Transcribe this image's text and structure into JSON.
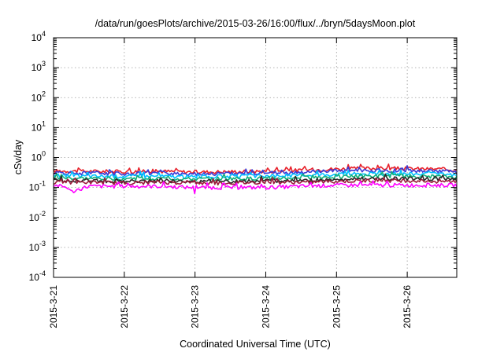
{
  "chart_data": {
    "type": "line",
    "title": "/data/run/goesPlots/archive/2015-03-26/16:00/flux/../bryn/5daysMoon.plot",
    "xlabel": "Coordinated Universal Time (UTC)",
    "ylabel": "cSv/day",
    "yscale": "log",
    "ylim": [
      0.0001,
      10000
    ],
    "xlim": [
      0,
      5.7
    ],
    "grid": true,
    "x_tick_values": [
      0,
      1,
      2,
      3,
      4,
      5
    ],
    "x_tick_labels": [
      "2015-3-21",
      "2015-3-22",
      "2015-3-23",
      "2015-3-24",
      "2015-3-25",
      "2015-3-26"
    ],
    "y_ticks": [
      {
        "value": 0.0001,
        "base": "10",
        "exp": "-4"
      },
      {
        "value": 0.001,
        "base": "10",
        "exp": "-3"
      },
      {
        "value": 0.01,
        "base": "10",
        "exp": "-2"
      },
      {
        "value": 0.1,
        "base": "10",
        "exp": "-1"
      },
      {
        "value": 1,
        "base": "10",
        "exp": "0"
      },
      {
        "value": 10,
        "base": "10",
        "exp": "1"
      },
      {
        "value": 100,
        "base": "10",
        "exp": "2"
      },
      {
        "value": 1000,
        "base": "10",
        "exp": "3"
      },
      {
        "value": 10000,
        "base": "10",
        "exp": "4"
      }
    ],
    "series": [
      {
        "color": "#e8202a",
        "x": [
          0,
          0.5,
          1.0,
          1.5,
          2.0,
          2.5,
          3.0,
          3.5,
          4.0,
          4.5,
          5.0,
          5.5,
          5.7
        ],
        "values": [
          0.36,
          0.35,
          0.34,
          0.35,
          0.33,
          0.34,
          0.35,
          0.38,
          0.42,
          0.44,
          0.43,
          0.41,
          0.38
        ]
      },
      {
        "color": "#3b3bd6",
        "x": [
          0,
          0.5,
          1.0,
          1.5,
          2.0,
          2.5,
          3.0,
          3.5,
          4.0,
          4.5,
          5.0,
          5.5,
          5.7
        ],
        "values": [
          0.31,
          0.3,
          0.29,
          0.3,
          0.29,
          0.29,
          0.3,
          0.32,
          0.36,
          0.37,
          0.37,
          0.35,
          0.32
        ]
      },
      {
        "color": "#00c0ff",
        "x": [
          0,
          0.5,
          1.0,
          1.5,
          2.0,
          2.5,
          3.0,
          3.5,
          4.0,
          4.5,
          5.0,
          5.5,
          5.7
        ],
        "values": [
          0.25,
          0.24,
          0.24,
          0.24,
          0.23,
          0.24,
          0.24,
          0.26,
          0.28,
          0.29,
          0.29,
          0.28,
          0.26
        ]
      },
      {
        "color": "#10b07a",
        "x": [
          0,
          0.5,
          1.0,
          1.5,
          2.0,
          2.5,
          3.0,
          3.5,
          4.0,
          4.5,
          5.0,
          5.5,
          5.7
        ],
        "values": [
          0.21,
          0.2,
          0.2,
          0.2,
          0.19,
          0.2,
          0.2,
          0.21,
          0.23,
          0.24,
          0.24,
          0.23,
          0.22
        ]
      },
      {
        "color": "#2a2a2a",
        "x": [
          0,
          0.5,
          1.0,
          1.5,
          2.0,
          2.5,
          3.0,
          3.5,
          4.0,
          4.5,
          5.0,
          5.5,
          5.7
        ],
        "values": [
          0.17,
          0.17,
          0.16,
          0.17,
          0.16,
          0.16,
          0.17,
          0.17,
          0.19,
          0.2,
          0.2,
          0.19,
          0.18
        ]
      },
      {
        "color": "#9b1c3c",
        "x": [
          0,
          0.5,
          1.0,
          1.5,
          2.0,
          2.5,
          3.0,
          3.5,
          4.0,
          4.5,
          5.0,
          5.5,
          5.7
        ],
        "values": [
          0.15,
          0.15,
          0.14,
          0.15,
          0.14,
          0.14,
          0.15,
          0.15,
          0.16,
          0.17,
          0.17,
          0.16,
          0.16
        ]
      },
      {
        "color": "#ff00ff",
        "x": [
          0,
          0.2,
          0.25,
          0.5,
          1.0,
          1.5,
          1.98,
          2.0,
          2.02,
          2.5,
          3.0,
          3.5,
          4.0,
          4.5,
          5.0,
          5.5,
          5.7
        ],
        "values": [
          0.12,
          0.1,
          0.07,
          0.11,
          0.11,
          0.11,
          0.1,
          0.06,
          0.1,
          0.1,
          0.1,
          0.11,
          0.12,
          0.12,
          0.12,
          0.12,
          0.12
        ]
      }
    ]
  }
}
